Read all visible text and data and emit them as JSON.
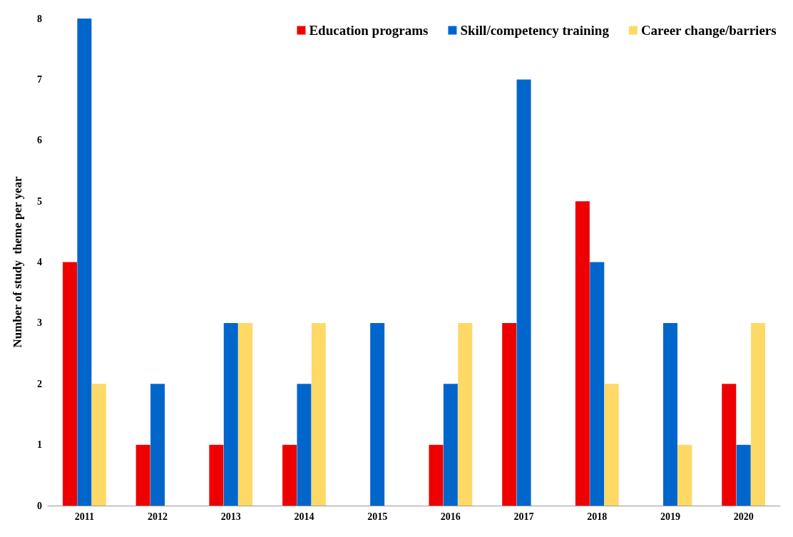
{
  "chart_data": {
    "type": "bar",
    "ylabel": "Number of study  theme per year",
    "categories": [
      "2011",
      "2012",
      "2013",
      "2014",
      "2015",
      "2016",
      "2017",
      "2018",
      "2019",
      "2020"
    ],
    "series": [
      {
        "name": "Education programs",
        "color": "#ee0000",
        "values": [
          4,
          1,
          1,
          1,
          0,
          1,
          3,
          5,
          0,
          2
        ]
      },
      {
        "name": "Skill/competency training",
        "color": "#0066cc",
        "values": [
          8,
          2,
          3,
          2,
          3,
          2,
          7,
          4,
          3,
          1
        ]
      },
      {
        "name": "Career change/barriers",
        "color": "#ffd966",
        "values": [
          2,
          0,
          3,
          3,
          0,
          3,
          0,
          2,
          1,
          3
        ]
      }
    ],
    "ylim": [
      0,
      8
    ],
    "yticks": [
      0,
      1,
      2,
      3,
      4,
      5,
      6,
      7,
      8
    ],
    "grid": false,
    "legend": "top right"
  }
}
